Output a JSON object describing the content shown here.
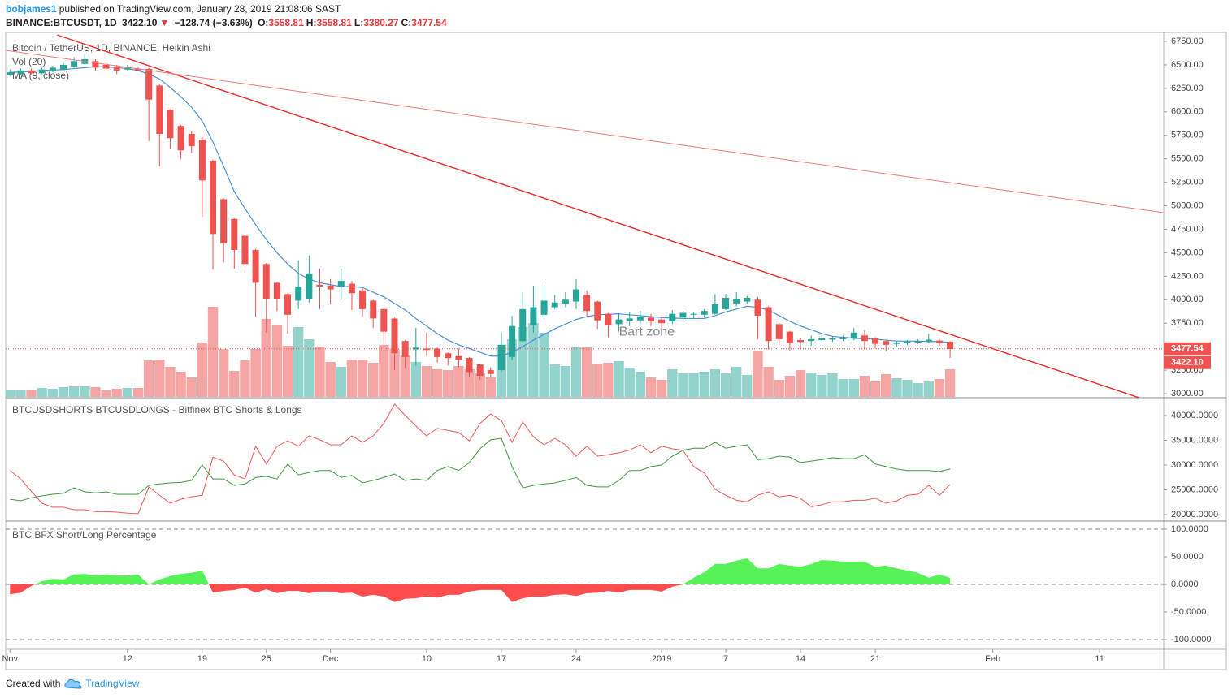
{
  "header": {
    "author": "bobjames1",
    "published": "published on TradingView.com, January 28, 2019 21:08:06 SAST",
    "symbol": "BINANCE:BTCUSDT, 1D",
    "price": "3422.10",
    "arrow": "▼",
    "change": "−128.74 (−3.63%)",
    "ohlc": [
      {
        "key": "O:",
        "value": "3558.81"
      },
      {
        "key": "H:",
        "value": "3558.81"
      },
      {
        "key": "L:",
        "value": "3380.27"
      },
      {
        "key": "C:",
        "value": "3477.54"
      }
    ]
  },
  "chart_data": [
    {
      "type": "candlestick",
      "title": "Bitcoin / TetherUS, 1D, BINANCE, Heikin Ashi",
      "up_color": "#26a69a",
      "down_color": "#ef5350",
      "open": [
        6390,
        6400,
        6440,
        6410,
        6430,
        6450,
        6480,
        6510,
        6540,
        6500,
        6480,
        6450,
        6460,
        6456,
        6280,
        6024,
        5850,
        5765,
        5705,
        5480,
        5070,
        4860,
        4680,
        4530,
        4380,
        4180,
        4060,
        3990,
        4010,
        4160,
        4150,
        4140,
        4170,
        4100,
        3990,
        3900,
        3800,
        3560,
        3470,
        3480,
        3480,
        3430,
        3400,
        3380,
        3310,
        3250,
        3250,
        3390,
        3560,
        3730,
        3840,
        3920,
        3960,
        3980,
        4050,
        3980,
        3850,
        3740,
        3770,
        3780,
        3810,
        3790,
        3770,
        3810,
        3840,
        3840,
        3850,
        3900,
        3960,
        3980,
        4000,
        3920,
        3740,
        3660,
        3570,
        3560,
        3570,
        3575,
        3580,
        3590,
        3620,
        3590,
        3560,
        3530,
        3540,
        3545,
        3550,
        3565,
        3552
      ],
      "high": [
        6450,
        6460,
        6460,
        6470,
        6490,
        6520,
        6580,
        6620,
        6560,
        6520,
        6500,
        6500,
        6480,
        6470,
        6290,
        6030,
        5860,
        5790,
        5730,
        5490,
        5080,
        4870,
        4690,
        4540,
        4390,
        4190,
        4070,
        4420,
        4470,
        4330,
        4220,
        4330,
        4200,
        4120,
        4000,
        3910,
        3810,
        3570,
        3700,
        3650,
        3490,
        3440,
        3480,
        3390,
        3320,
        3280,
        3650,
        3830,
        4080,
        4150,
        4160,
        4050,
        4080,
        4220,
        4100,
        3990,
        3860,
        3850,
        3870,
        3880,
        3850,
        3820,
        3890,
        3880,
        3870,
        3900,
        4060,
        4060,
        4080,
        4040,
        4030,
        3930,
        3750,
        3670,
        3590,
        3620,
        3620,
        3610,
        3620,
        3700,
        3680,
        3600,
        3570,
        3560,
        3570,
        3580,
        3640,
        3580,
        3560
      ],
      "low": [
        6380,
        6390,
        6400,
        6400,
        6420,
        6440,
        6470,
        6500,
        6440,
        6430,
        6400,
        6430,
        6430,
        5690,
        5420,
        5600,
        5500,
        5560,
        4880,
        4320,
        4400,
        4330,
        4300,
        3820,
        3650,
        3880,
        3640,
        3900,
        3970,
        3900,
        3950,
        4000,
        3890,
        3820,
        3700,
        3520,
        3250,
        3270,
        3300,
        3400,
        3330,
        3300,
        3280,
        3180,
        3150,
        3180,
        3230,
        3360,
        3550,
        3650,
        3800,
        3900,
        3920,
        3900,
        3810,
        3690,
        3600,
        3660,
        3720,
        3740,
        3720,
        3690,
        3740,
        3780,
        3800,
        3810,
        3840,
        3890,
        3930,
        3960,
        3580,
        3470,
        3520,
        3460,
        3470,
        3510,
        3530,
        3550,
        3560,
        3570,
        3470,
        3480,
        3450,
        3500,
        3520,
        3530,
        3540,
        3510,
        3380
      ],
      "close": [
        6420,
        6440,
        6410,
        6450,
        6470,
        6500,
        6540,
        6560,
        6470,
        6460,
        6440,
        6470,
        6440,
        6130,
        5765,
        5720,
        5590,
        5635,
        5270,
        4700,
        4600,
        4530,
        4380,
        4180,
        4010,
        4010,
        3840,
        4140,
        4280,
        4140,
        4110,
        4200,
        4070,
        3900,
        3800,
        3660,
        3430,
        3390,
        3490,
        3465,
        3390,
        3380,
        3360,
        3230,
        3190,
        3210,
        3520,
        3720,
        3900,
        3920,
        3990,
        3970,
        4000,
        4110,
        3880,
        3780,
        3730,
        3790,
        3800,
        3820,
        3770,
        3750,
        3850,
        3860,
        3850,
        3880,
        3950,
        4020,
        4010,
        4020,
        3830,
        3560,
        3580,
        3540,
        3550,
        3580,
        3590,
        3590,
        3600,
        3650,
        3560,
        3530,
        3520,
        3545,
        3555,
        3560,
        3575,
        3540,
        3475
      ],
      "volume": {
        "name": "Vol (20)",
        "up_color": "#93d3cc",
        "down_color": "#f5a6a4",
        "values": [
          9000,
          9000,
          9000,
          11000,
          10000,
          12000,
          13000,
          13000,
          12000,
          8000,
          10000,
          11000,
          11000,
          45000,
          46000,
          37000,
          31000,
          24000,
          67000,
          111000,
          59000,
          32000,
          45000,
          59000,
          96000,
          89000,
          63000,
          86000,
          71000,
          62000,
          43000,
          37000,
          46000,
          46000,
          42000,
          64000,
          59000,
          51000,
          43000,
          38000,
          34000,
          33000,
          38000,
          34000,
          29000,
          24000,
          64000,
          71000,
          86000,
          91000,
          79000,
          40000,
          38000,
          61000,
          61000,
          41000,
          42000,
          44000,
          36000,
          31000,
          24000,
          21000,
          34000,
          29000,
          29000,
          31000,
          34000,
          29000,
          37000,
          27000,
          57000,
          37000,
          21000,
          26000,
          33000,
          30000,
          27000,
          29000,
          22000,
          22000,
          26000,
          19000,
          28000,
          23000,
          21000,
          17000,
          19000,
          22000,
          34000
        ]
      },
      "ma": {
        "name": "MA (9, close)",
        "color": "#4a90d9",
        "values": [
          6420,
          6425,
          6430,
          6440,
          6445,
          6450,
          6460,
          6470,
          6480,
          6480,
          6470,
          6460,
          6440,
          6400,
          6350,
          6260,
          6160,
          6050,
          5900,
          5680,
          5420,
          5150,
          4970,
          4800,
          4640,
          4500,
          4380,
          4280,
          4220,
          4180,
          4160,
          4140,
          4140,
          4130,
          4080,
          4030,
          3960,
          3890,
          3800,
          3720,
          3640,
          3570,
          3520,
          3480,
          3440,
          3400,
          3400,
          3440,
          3500,
          3570,
          3630,
          3690,
          3740,
          3790,
          3820,
          3840,
          3845,
          3850,
          3840,
          3830,
          3820,
          3810,
          3805,
          3800,
          3800,
          3800,
          3830,
          3870,
          3900,
          3930,
          3920,
          3890,
          3830,
          3770,
          3720,
          3680,
          3640,
          3610,
          3600,
          3590,
          3585,
          3580,
          3570,
          3560,
          3560,
          3560,
          3555,
          3555,
          3545
        ]
      },
      "trendlines": [
        {
          "color": "#ef2b2b",
          "x": [
            4.4,
            105.7
          ],
          "y": [
            6819,
            2957
          ]
        },
        {
          "color": "#f07a7a",
          "x": [
            -0.4,
            108
          ],
          "y": [
            6655,
            4927
          ]
        }
      ],
      "annotations": [
        {
          "text": "Bart zone",
          "x": 57,
          "y": 3656
        }
      ],
      "price_line": 3477.54,
      "price_labels": [
        3477.54,
        {
          "value": 3422.1,
          "label": "3422.10"
        }
      ],
      "label_color": "#ef5350",
      "ylim": [
        2957,
        6845
      ],
      "yticks": [
        {
          "value": 3000,
          "label": "3000.00"
        },
        {
          "value": 3250,
          "label": "3250.00"
        },
        {
          "value": 3500,
          "label": "3500.00"
        },
        {
          "value": 3750,
          "label": "3750.00"
        },
        {
          "value": 4000,
          "label": "4000.00"
        },
        {
          "value": 4250,
          "label": "4250.00"
        },
        {
          "value": 4500,
          "label": "4500.00"
        },
        {
          "value": 4750,
          "label": "4750.00"
        },
        {
          "value": 5000,
          "label": "5000.00"
        },
        {
          "value": 5250,
          "label": "5250.00"
        },
        {
          "value": 5500,
          "label": "5500.00"
        },
        {
          "value": 5750,
          "label": "5750.00"
        },
        {
          "value": 6000,
          "label": "6000.00"
        },
        {
          "value": 6250,
          "label": "6250.00"
        },
        {
          "value": 6500,
          "label": "6500.00"
        },
        {
          "value": 6750,
          "label": "6750.00"
        }
      ],
      "xlim": [
        -0.4,
        108
      ],
      "xticks": [
        {
          "value": 0,
          "label": "Nov"
        },
        {
          "value": 11,
          "label": "12"
        },
        {
          "value": 18,
          "label": "19"
        },
        {
          "value": 24,
          "label": "25"
        },
        {
          "value": 30,
          "label": "Dec"
        },
        {
          "value": 39,
          "label": "10"
        },
        {
          "value": 46,
          "label": "17"
        },
        {
          "value": 53,
          "label": "24"
        },
        {
          "value": 61,
          "label": "2019"
        },
        {
          "value": 67,
          "label": "7"
        },
        {
          "value": 74,
          "label": "14"
        },
        {
          "value": 81,
          "label": "21"
        },
        {
          "value": 92,
          "label": "Feb"
        },
        {
          "value": 102,
          "label": "11"
        }
      ]
    },
    {
      "type": "line",
      "title": "BTCUSDSHORTS BTCUSDLONGS - Bitfinex BTC Shorts & Longs",
      "series": [
        {
          "color": "#f05a5a",
          "values": [
            28900,
            27200,
            24700,
            22300,
            21500,
            21500,
            21000,
            21000,
            20600,
            20600,
            20500,
            20300,
            20200,
            25600,
            23900,
            22300,
            23100,
            23600,
            23900,
            31600,
            30800,
            28000,
            27200,
            33800,
            30200,
            33800,
            34900,
            33800,
            35900,
            35100,
            34100,
            34100,
            35900,
            34600,
            35900,
            38400,
            42300,
            40000,
            37900,
            35900,
            37400,
            37000,
            36600,
            34900,
            38400,
            40300,
            39000,
            34600,
            38700,
            35700,
            34100,
            35400,
            34100,
            31800,
            33800,
            31800,
            32100,
            32500,
            33000,
            34100,
            32500,
            33800,
            33300,
            33000,
            29700,
            28400,
            25100,
            23900,
            22900,
            22600,
            23900,
            24600,
            23600,
            23900,
            23300,
            21600,
            22000,
            22600,
            22600,
            22900,
            22900,
            23300,
            22300,
            22800,
            23900,
            24100,
            25900,
            23900,
            26100
          ]
        },
        {
          "color": "#3f9a3f",
          "values": [
            23100,
            22800,
            23400,
            23800,
            24100,
            24300,
            25400,
            24600,
            24400,
            24600,
            24100,
            24100,
            24100,
            25900,
            26200,
            26400,
            26500,
            26900,
            30000,
            27200,
            27200,
            25900,
            26200,
            27500,
            27700,
            27200,
            30200,
            28000,
            28500,
            28900,
            28900,
            27500,
            27900,
            26400,
            26900,
            27500,
            28200,
            26900,
            27200,
            26900,
            28900,
            29700,
            28900,
            30500,
            33300,
            35100,
            35400,
            29700,
            25400,
            25900,
            26200,
            26400,
            26900,
            27500,
            25900,
            25600,
            25600,
            26900,
            28900,
            28900,
            29700,
            30000,
            31800,
            33000,
            33400,
            33400,
            34600,
            33400,
            33800,
            34100,
            31100,
            31300,
            31800,
            31600,
            30500,
            30800,
            31100,
            31500,
            31300,
            31300,
            32100,
            30200,
            29700,
            29200,
            28900,
            28900,
            28900,
            28700,
            29200
          ]
        }
      ],
      "ylim": [
        18700,
        43600
      ],
      "yticks": [
        {
          "value": 20000,
          "label": "20000.0000"
        },
        {
          "value": 25000,
          "label": "25000.0000"
        },
        {
          "value": 30000,
          "label": "30000.0000"
        },
        {
          "value": 35000,
          "label": "35000.0000"
        },
        {
          "value": 40000,
          "label": "40000.0000"
        }
      ]
    },
    {
      "type": "area",
      "title": "BTC BFX Short/Long Percentage",
      "pos_color": "#57f257",
      "neg_color": "#ff4d4d",
      "values": [
        -18,
        -15,
        -3,
        6,
        10,
        9,
        18,
        19,
        16,
        18,
        16,
        16,
        18,
        0,
        9,
        15,
        19,
        21,
        25,
        -15,
        -12,
        -10,
        -6,
        -15,
        -9,
        -16,
        -12,
        -12,
        -16,
        -13,
        -13,
        -16,
        -15,
        -22,
        -19,
        -22,
        -32,
        -26,
        -25,
        -22,
        -24,
        -19,
        -19,
        -13,
        -10,
        -10,
        -10,
        -32,
        -25,
        -22,
        -22,
        -19,
        -18,
        -21,
        -16,
        -15,
        -12,
        -15,
        -10,
        -10,
        -10,
        -13,
        -4,
        0,
        12,
        22,
        37,
        37,
        43,
        47,
        29,
        29,
        37,
        34,
        32,
        37,
        44,
        43,
        41,
        41,
        41,
        32,
        34,
        29,
        25,
        21,
        12,
        18,
        12
      ],
      "hlines": [
        100,
        0,
        -100
      ],
      "ylim": [
        -117.6,
        114.7
      ],
      "yticks": [
        {
          "value": -100,
          "label": "-100.0000"
        },
        {
          "value": -50,
          "label": "-50.0000"
        },
        {
          "value": 0,
          "label": "0.0000"
        },
        {
          "value": 50,
          "label": "50.0000"
        },
        {
          "value": 100,
          "label": "100.0000"
        }
      ]
    }
  ],
  "footer": {
    "created": "Created with",
    "brand": "TradingView"
  }
}
